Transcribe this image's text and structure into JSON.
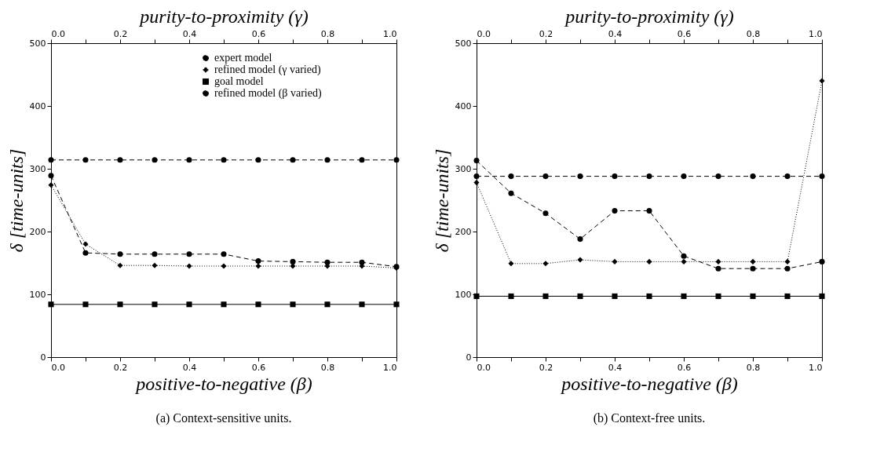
{
  "chart_data": [
    {
      "type": "line",
      "title": "(a) Context-sensitive units.",
      "xlabel": "positive-to-negative (β)",
      "ylabel": "δ [time-units]",
      "x2label": "purity-to-proximity (γ)",
      "x": [
        0,
        0.1,
        0.2,
        0.3,
        0.4,
        0.5,
        0.6,
        0.7,
        0.8,
        0.9,
        1.0
      ],
      "xlim": [
        0,
        1
      ],
      "xticks": [
        {
          "value": 0,
          "label": "0.0"
        },
        {
          "value": 0.1,
          "label": null
        },
        {
          "value": 0.2,
          "label": "0.2"
        },
        {
          "value": 0.3,
          "label": null
        },
        {
          "value": 0.4,
          "label": "0.4"
        },
        {
          "value": 0.5,
          "label": null
        },
        {
          "value": 0.6,
          "label": "0.6"
        },
        {
          "value": 0.7,
          "label": null
        },
        {
          "value": 0.8,
          "label": "0.8"
        },
        {
          "value": 0.9,
          "label": null
        },
        {
          "value": 1,
          "label": "1.0"
        }
      ],
      "x2lim": [
        0,
        1
      ],
      "x2ticks": [
        {
          "value": 0,
          "label": "0.0"
        },
        {
          "value": 0.1,
          "label": null
        },
        {
          "value": 0.2,
          "label": "0.2"
        },
        {
          "value": 0.3,
          "label": null
        },
        {
          "value": 0.4,
          "label": "0.4"
        },
        {
          "value": 0.5,
          "label": null
        },
        {
          "value": 0.6,
          "label": "0.6"
        },
        {
          "value": 0.7,
          "label": null
        },
        {
          "value": 0.8,
          "label": "0.8"
        },
        {
          "value": 0.9,
          "label": null
        },
        {
          "value": 1,
          "label": "1.0"
        }
      ],
      "ylim": [
        0,
        500
      ],
      "yticks": [
        0,
        100,
        200,
        300,
        400,
        500
      ],
      "grid": false,
      "legend": "top right",
      "series": [
        {
          "name": "expert model",
          "color": "#000000",
          "marker": "circle",
          "line_style": "dashed",
          "values": [
            314,
            314,
            314,
            314,
            314,
            314,
            314,
            314,
            314,
            314,
            314
          ]
        },
        {
          "name": "refined model (γ varied)",
          "color": "#000000",
          "marker": "diamond",
          "line_style": "dotted",
          "values": [
            274,
            180,
            146,
            146,
            145,
            145,
            145,
            145,
            145,
            145,
            142
          ]
        },
        {
          "name": "goal model",
          "color": "#000000",
          "marker": "square",
          "line_style": "solid",
          "values": [
            84,
            84,
            84,
            84,
            84,
            84,
            84,
            84,
            84,
            84,
            84
          ]
        },
        {
          "name": "refined model (β varied)",
          "color": "#000000",
          "marker": "circle",
          "line_style": "dashed",
          "values": [
            289,
            166,
            164,
            164,
            164,
            164,
            153,
            152,
            151,
            151,
            144
          ]
        }
      ]
    },
    {
      "type": "line",
      "title": "(b) Context-free units.",
      "xlabel": "positive-to-negative (β)",
      "ylabel": "δ [time-units]",
      "x2label": "purity-to-proximity (γ)",
      "x": [
        0,
        0.1,
        0.2,
        0.3,
        0.4,
        0.5,
        0.6,
        0.7,
        0.8,
        0.9,
        1.0
      ],
      "xlim": [
        0,
        1
      ],
      "xticks": [
        {
          "value": 0,
          "label": "0.0"
        },
        {
          "value": 0.1,
          "label": null
        },
        {
          "value": 0.2,
          "label": "0.2"
        },
        {
          "value": 0.3,
          "label": null
        },
        {
          "value": 0.4,
          "label": "0.4"
        },
        {
          "value": 0.5,
          "label": null
        },
        {
          "value": 0.6,
          "label": "0.6"
        },
        {
          "value": 0.7,
          "label": null
        },
        {
          "value": 0.8,
          "label": "0.8"
        },
        {
          "value": 0.9,
          "label": null
        },
        {
          "value": 1,
          "label": "1.0"
        }
      ],
      "x2lim": [
        0,
        1
      ],
      "x2ticks": [
        {
          "value": 0,
          "label": "0.0"
        },
        {
          "value": 0.1,
          "label": null
        },
        {
          "value": 0.2,
          "label": "0.2"
        },
        {
          "value": 0.3,
          "label": null
        },
        {
          "value": 0.4,
          "label": "0.4"
        },
        {
          "value": 0.5,
          "label": null
        },
        {
          "value": 0.6,
          "label": "0.6"
        },
        {
          "value": 0.7,
          "label": null
        },
        {
          "value": 0.8,
          "label": "0.8"
        },
        {
          "value": 0.9,
          "label": null
        },
        {
          "value": 1,
          "label": "1.0"
        }
      ],
      "ylim": [
        0,
        500
      ],
      "yticks": [
        0,
        100,
        200,
        300,
        400,
        500
      ],
      "grid": false,
      "legend": "top right",
      "series": [
        {
          "name": "expert model",
          "color": "#000000",
          "marker": "circle",
          "line_style": "dashed",
          "values": [
            288,
            288,
            288,
            288,
            288,
            288,
            288,
            288,
            288,
            288,
            288
          ]
        },
        {
          "name": "refined model (γ varied)",
          "color": "#000000",
          "marker": "diamond",
          "line_style": "dotted",
          "values": [
            278,
            149,
            149,
            155,
            152,
            152,
            152,
            152,
            152,
            152,
            440
          ]
        },
        {
          "name": "goal model",
          "color": "#000000",
          "marker": "square",
          "line_style": "solid",
          "values": [
            97,
            97,
            97,
            97,
            97,
            97,
            97,
            97,
            97,
            97,
            97
          ]
        },
        {
          "name": "refined model (β varied)",
          "color": "#000000",
          "marker": "circle",
          "line_style": "dashed",
          "values": [
            313,
            261,
            229,
            188,
            233,
            233,
            161,
            141,
            141,
            141,
            152
          ]
        }
      ]
    }
  ]
}
